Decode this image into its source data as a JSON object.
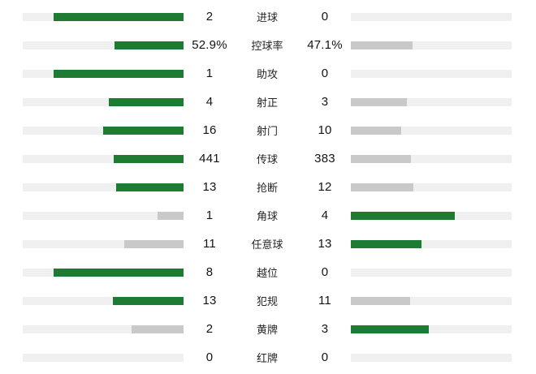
{
  "chart_data": {
    "type": "bar",
    "layout": "mirrored-comparison",
    "colors": {
      "win": "#1e7c32",
      "lose": "#c9c9c9",
      "track": "#f0f0f0"
    },
    "max_fill_pct": 81,
    "rows": [
      {
        "label": "进球",
        "home": {
          "value": "2",
          "pct": 81,
          "color": "green"
        },
        "away": {
          "value": "0",
          "pct": 0,
          "color": "none"
        }
      },
      {
        "label": "控球率",
        "home": {
          "value": "52.9%",
          "pct": 42.8,
          "color": "green"
        },
        "away": {
          "value": "47.1%",
          "pct": 38.2,
          "color": "gray"
        }
      },
      {
        "label": "助攻",
        "home": {
          "value": "1",
          "pct": 81,
          "color": "green"
        },
        "away": {
          "value": "0",
          "pct": 0,
          "color": "none"
        }
      },
      {
        "label": "射正",
        "home": {
          "value": "4",
          "pct": 46.3,
          "color": "green"
        },
        "away": {
          "value": "3",
          "pct": 34.7,
          "color": "gray"
        }
      },
      {
        "label": "射门",
        "home": {
          "value": "16",
          "pct": 49.8,
          "color": "green"
        },
        "away": {
          "value": "10",
          "pct": 31.2,
          "color": "gray"
        }
      },
      {
        "label": "传球",
        "home": {
          "value": "441",
          "pct": 43.3,
          "color": "green"
        },
        "away": {
          "value": "383",
          "pct": 37.6,
          "color": "gray"
        }
      },
      {
        "label": "抢断",
        "home": {
          "value": "13",
          "pct": 42.1,
          "color": "green"
        },
        "away": {
          "value": "12",
          "pct": 38.9,
          "color": "gray"
        }
      },
      {
        "label": "角球",
        "home": {
          "value": "1",
          "pct": 16.2,
          "color": "gray"
        },
        "away": {
          "value": "4",
          "pct": 64.8,
          "color": "green"
        }
      },
      {
        "label": "任意球",
        "home": {
          "value": "11",
          "pct": 37.1,
          "color": "gray"
        },
        "away": {
          "value": "13",
          "pct": 43.9,
          "color": "green"
        }
      },
      {
        "label": "越位",
        "home": {
          "value": "8",
          "pct": 81,
          "color": "green"
        },
        "away": {
          "value": "0",
          "pct": 0,
          "color": "none"
        }
      },
      {
        "label": "犯规",
        "home": {
          "value": "13",
          "pct": 43.9,
          "color": "green"
        },
        "away": {
          "value": "11",
          "pct": 37.1,
          "color": "gray"
        }
      },
      {
        "label": "黄牌",
        "home": {
          "value": "2",
          "pct": 32.4,
          "color": "gray"
        },
        "away": {
          "value": "3",
          "pct": 48.6,
          "color": "green"
        }
      },
      {
        "label": "红牌",
        "home": {
          "value": "0",
          "pct": 0,
          "color": "none"
        },
        "away": {
          "value": "0",
          "pct": 0,
          "color": "none"
        }
      }
    ]
  }
}
